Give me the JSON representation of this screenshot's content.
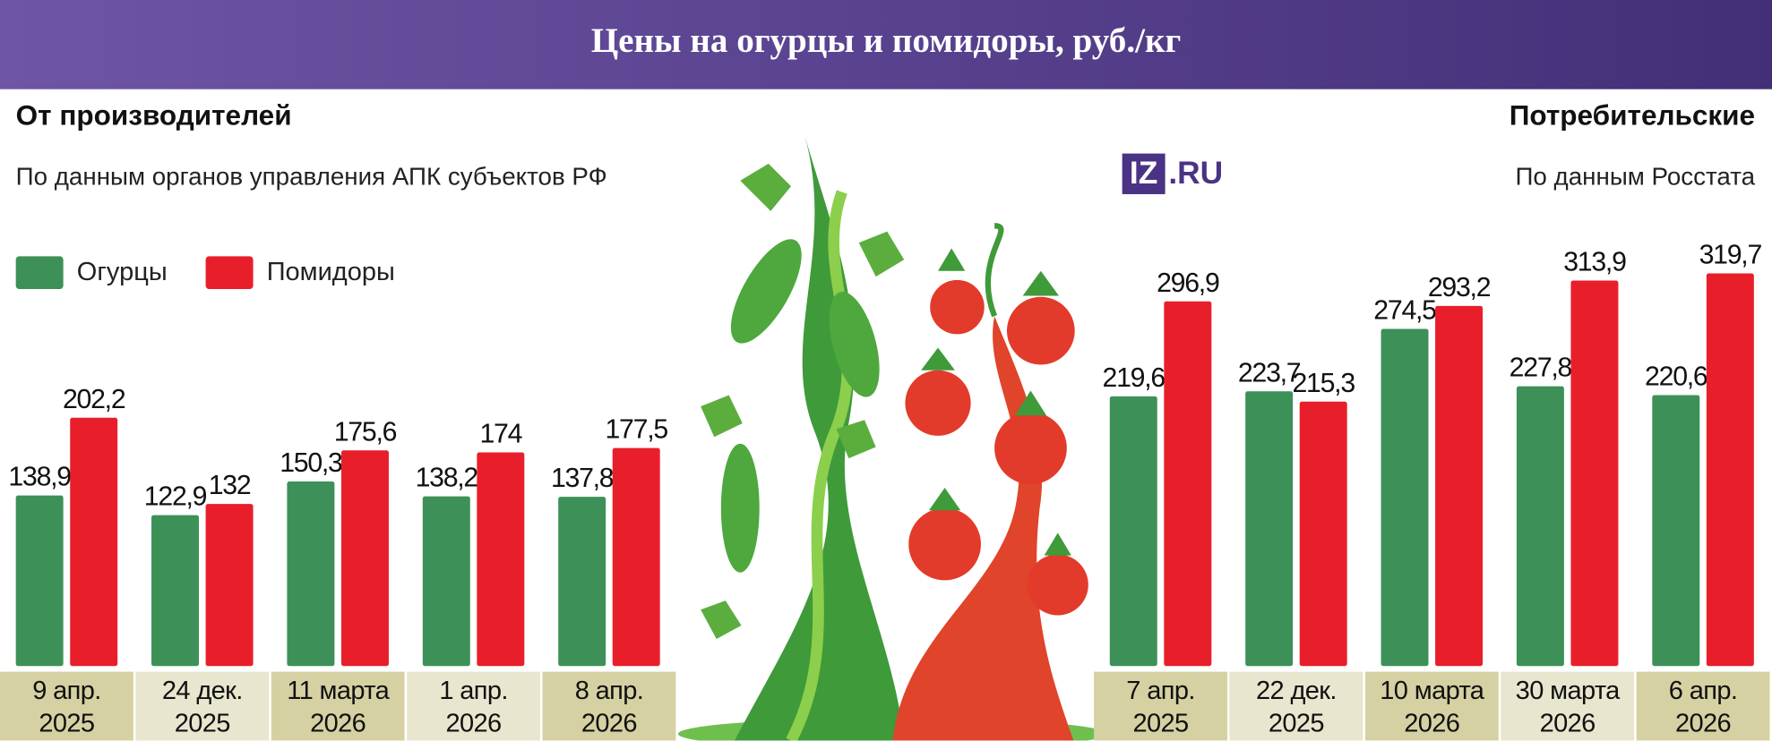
{
  "title": "Цены на огурцы и помидоры, руб./кг",
  "logo": {
    "mark": "IZ",
    "text": ".RU"
  },
  "chart_data": [
    {
      "type": "bar",
      "title": "От производителей",
      "subtitle": "По данным органов управления АПК субъектов РФ",
      "categories": [
        "9 апр.\n2025",
        "24 дек.\n2025",
        "11 марта\n2026",
        "1 апр.\n2026",
        "8 апр.\n2026"
      ],
      "series": [
        {
          "name": "Огурцы",
          "color": "#3d9158",
          "values": [
            138.9,
            122.9,
            150.3,
            138.2,
            137.8
          ],
          "value_labels": [
            "138,9",
            "122,9",
            "150,3",
            "138,2",
            "137,8"
          ]
        },
        {
          "name": "Помидоры",
          "color": "#e81f2a",
          "values": [
            202.2,
            132,
            175.6,
            174,
            177.5
          ],
          "value_labels": [
            "202,2",
            "132",
            "175,6",
            "174",
            "177,5"
          ]
        }
      ],
      "legend": "top-left"
    },
    {
      "type": "bar",
      "title": "Потребительские",
      "subtitle": "По данным Росстата",
      "categories": [
        "7 апр.\n2025",
        "22 дек.\n2025",
        "10 марта\n2026",
        "30 марта\n2026",
        "6 апр.\n2026"
      ],
      "series": [
        {
          "color": "#3d9158",
          "values": [
            219.6,
            223.7,
            274.5,
            227.8,
            220.6
          ],
          "value_labels": [
            "219,6",
            "223,7",
            "274,5",
            "227,8",
            "220,6"
          ]
        },
        {
          "color": "#e81f2a",
          "values": [
            296.9,
            215.3,
            293.2,
            313.9,
            319.7
          ],
          "value_labels": [
            "296,9",
            "215,3",
            "293,2",
            "313,9",
            "319,7"
          ]
        }
      ]
    }
  ]
}
